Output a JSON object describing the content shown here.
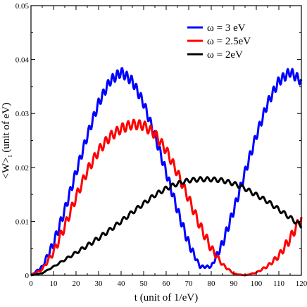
{
  "chart_data": {
    "type": "line",
    "title": "",
    "xlabel": "t (unit of 1/eV)",
    "ylabel": "<W>t (unit of eV)",
    "ylabel_main": "<W>",
    "ylabel_sub": "t",
    "ylabel_unit": " (unit of eV)",
    "xlim": [
      0,
      120
    ],
    "ylim": [
      0,
      0.05
    ],
    "x_ticks": [
      0,
      10,
      20,
      30,
      40,
      50,
      60,
      70,
      80,
      90,
      100,
      110,
      120
    ],
    "x_tick_labels": [
      "0",
      "10",
      "20",
      "30",
      "40",
      "50",
      "60",
      "70",
      "80",
      "90",
      "100",
      "110",
      "120"
    ],
    "y_ticks": [
      0,
      0.01,
      0.02,
      0.03,
      0.04,
      0.05
    ],
    "y_tick_labels": [
      "0",
      "0.01",
      "0.02",
      "0.03",
      "0.04",
      "0.05"
    ],
    "grid": false,
    "legend_position": "top-right",
    "series": [
      {
        "name": "ω = 3 eV",
        "color": "#0000ff",
        "x": [
          0,
          5,
          10,
          15,
          20,
          25,
          30,
          35,
          40,
          45,
          50,
          55,
          60,
          65,
          70,
          75,
          80,
          85,
          90,
          95,
          100,
          105,
          110,
          115,
          120
        ],
        "y": [
          0.0,
          0.0016,
          0.0059,
          0.0121,
          0.0191,
          0.0259,
          0.0319,
          0.036,
          0.0377,
          0.036,
          0.0319,
          0.0259,
          0.0191,
          0.0121,
          0.0059,
          0.0016,
          0.0016,
          0.0059,
          0.0121,
          0.0191,
          0.0259,
          0.0319,
          0.036,
          0.0377,
          0.036
        ]
      },
      {
        "name": "ω = 2.5eV",
        "color": "#ff0000",
        "x": [
          0,
          5,
          10,
          15,
          20,
          25,
          30,
          35,
          40,
          45,
          50,
          55,
          60,
          65,
          70,
          75,
          80,
          85,
          90,
          95,
          100,
          105,
          110,
          115,
          120
        ],
        "y": [
          0.0,
          0.0011,
          0.0043,
          0.0091,
          0.0145,
          0.0194,
          0.0231,
          0.0257,
          0.0272,
          0.028,
          0.0278,
          0.0262,
          0.0232,
          0.019,
          0.0142,
          0.0092,
          0.005,
          0.002,
          0.0003,
          0.0,
          0.0005,
          0.0017,
          0.0036,
          0.0068,
          0.0108
        ]
      },
      {
        "name": "ω = 2eV",
        "color": "#000000",
        "x": [
          0,
          5,
          10,
          15,
          20,
          25,
          30,
          35,
          40,
          45,
          50,
          55,
          60,
          65,
          70,
          75,
          80,
          85,
          90,
          95,
          100,
          105,
          110,
          115,
          120
        ],
        "y": [
          0.0,
          0.0004,
          0.0016,
          0.0029,
          0.0042,
          0.0055,
          0.0069,
          0.0084,
          0.01,
          0.0117,
          0.0133,
          0.0149,
          0.0161,
          0.017,
          0.0176,
          0.0178,
          0.0178,
          0.0176,
          0.017,
          0.0161,
          0.0149,
          0.0137,
          0.0122,
          0.0107,
          0.0091
        ]
      }
    ]
  }
}
